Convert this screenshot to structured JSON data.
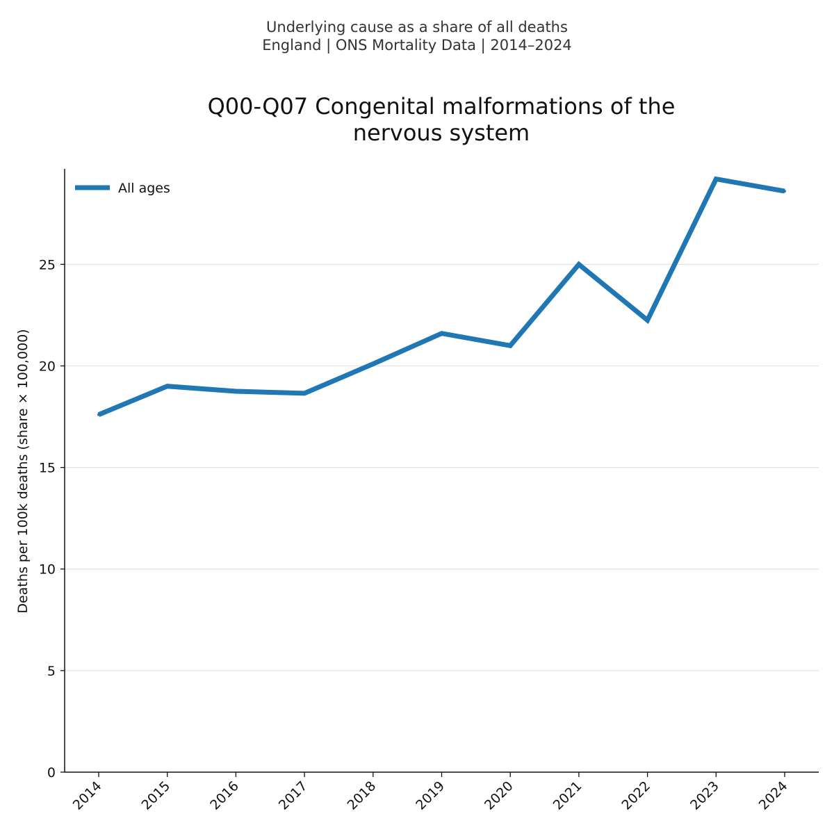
{
  "header": {
    "suptitle_line1": "Underlying cause as a share of all deaths",
    "suptitle_line2": "England | ONS Mortality Data | 2014–2024"
  },
  "chart_data": {
    "type": "line",
    "title_line1": "Q00-Q07 Congenital malformations of the",
    "title_line2": "nervous system",
    "xlabel": "",
    "ylabel": "Deaths per 100k deaths (share × 100,000)",
    "categories": [
      "2014",
      "2015",
      "2016",
      "2017",
      "2018",
      "2019",
      "2020",
      "2021",
      "2022",
      "2023",
      "2024"
    ],
    "series": [
      {
        "name": "All ages",
        "color": "#1f77b4",
        "values": [
          17.6,
          19.0,
          18.75,
          18.65,
          20.1,
          21.6,
          21.0,
          25.0,
          22.25,
          29.2,
          28.6
        ]
      }
    ],
    "yticks": [
      0,
      5,
      10,
      15,
      20,
      25
    ],
    "ylim": [
      0,
      29.7
    ],
    "grid": "horizontal",
    "legend_position": "top-left"
  }
}
